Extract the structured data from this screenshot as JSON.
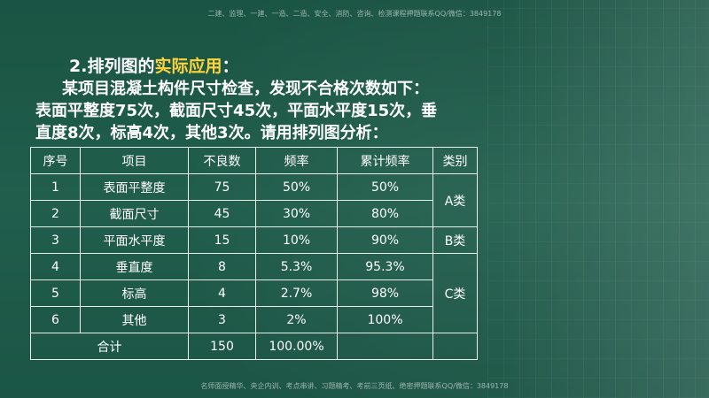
{
  "watermark_top": "二建、监理、一建、一造、二造、安全、消防、咨询、检测课程押题联系QQ/微信：3849178",
  "watermark_bottom": "名师面授精华、央企内训、考点串讲、习题精考、考前三页纸、绝密押题联系QQ/微信：3849178",
  "heading": {
    "prefix": "2.排列图的",
    "highlight": "实际应用",
    "suffix": "："
  },
  "paragraph": {
    "line1": "某项目混凝土构件尺寸检查，发现不合格次数如下：",
    "line2": "表面平整度75次，截面尺寸45次，平面水平度15次，垂",
    "line3": "直度8次，标高4次，其他3次。请用排列图分析："
  },
  "table": {
    "headers": [
      "序号",
      "项目",
      "不良数",
      "频率",
      "累计频率",
      "类别"
    ],
    "rows": [
      {
        "no": "1",
        "item": "表面平整度",
        "count": "75",
        "freq": "50%",
        "cum": "50%"
      },
      {
        "no": "2",
        "item": "截面尺寸",
        "count": "45",
        "freq": "30%",
        "cum": "80%"
      },
      {
        "no": "3",
        "item": "平面水平度",
        "count": "15",
        "freq": "10%",
        "cum": "90%"
      },
      {
        "no": "4",
        "item": "垂直度",
        "count": "8",
        "freq": "5.3%",
        "cum": "95.3%"
      },
      {
        "no": "5",
        "item": "标高",
        "count": "4",
        "freq": "2.7%",
        "cum": "98%"
      },
      {
        "no": "6",
        "item": "其他",
        "count": "3",
        "freq": "2%",
        "cum": "100%"
      }
    ],
    "categories": {
      "a": "A类",
      "b": "B类",
      "c": "C类"
    },
    "total": {
      "label": "合计",
      "count": "150",
      "freq": "100.00%"
    }
  },
  "colors": {
    "background": "#1f5b4a",
    "highlight": "#ffd43a",
    "text": "#ffffff"
  }
}
